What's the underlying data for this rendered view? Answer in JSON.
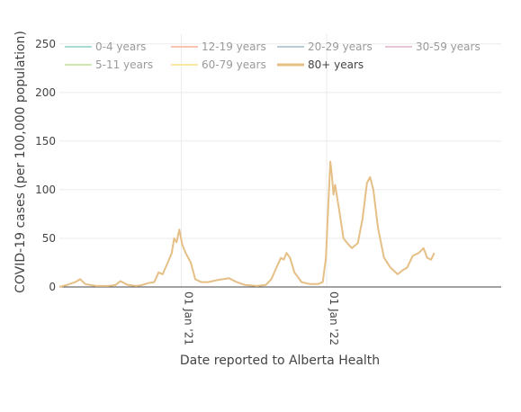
{
  "chart_data": {
    "type": "line",
    "title": "",
    "xlabel": "Date reported to Alberta Health",
    "ylabel": "COVID-19 cases (per 100,000 population)",
    "x_range": [
      "2020-03-01",
      "2023-03-15"
    ],
    "ylim": [
      0,
      260
    ],
    "y_ticks": [
      0,
      50,
      100,
      150,
      200,
      250
    ],
    "x_ticks": [
      {
        "value": "2021-01-01",
        "label": "01 Jan '21"
      },
      {
        "value": "2022-01-01",
        "label": "01 Jan '22"
      }
    ],
    "grid": true,
    "legend_position": "top",
    "legend": [
      {
        "label": "0-4 years",
        "color": "#a8dcd2",
        "active": false
      },
      {
        "label": "12-19 years",
        "color": "#f7c4b0",
        "active": false
      },
      {
        "label": "20-29 years",
        "color": "#b8ccd4",
        "active": false
      },
      {
        "label": "30-59 years",
        "color": "#e8c4d8",
        "active": false
      },
      {
        "label": "5-11 years",
        "color": "#cde8b0",
        "active": false
      },
      {
        "label": "60-79 years",
        "color": "#fbe7a1",
        "active": false
      },
      {
        "label": "80+ years",
        "color": "#e5bf85",
        "active": true
      }
    ],
    "series": [
      {
        "name": "80+ years",
        "color": "#e5bf85",
        "points": [
          [
            "2020-03-01",
            0
          ],
          [
            "2020-03-20",
            2
          ],
          [
            "2020-04-10",
            5
          ],
          [
            "2020-04-22",
            8
          ],
          [
            "2020-05-05",
            3
          ],
          [
            "2020-06-01",
            1
          ],
          [
            "2020-07-01",
            1
          ],
          [
            "2020-07-20",
            2
          ],
          [
            "2020-08-01",
            6
          ],
          [
            "2020-08-20",
            2
          ],
          [
            "2020-09-10",
            1
          ],
          [
            "2020-09-25",
            2
          ],
          [
            "2020-10-10",
            4
          ],
          [
            "2020-10-25",
            5
          ],
          [
            "2020-11-05",
            15
          ],
          [
            "2020-11-15",
            13
          ],
          [
            "2020-11-28",
            25
          ],
          [
            "2020-12-08",
            35
          ],
          [
            "2020-12-14",
            50
          ],
          [
            "2020-12-20",
            46
          ],
          [
            "2020-12-27",
            59
          ],
          [
            "2021-01-03",
            44
          ],
          [
            "2021-01-12",
            35
          ],
          [
            "2021-01-25",
            25
          ],
          [
            "2021-02-05",
            8
          ],
          [
            "2021-02-20",
            5
          ],
          [
            "2021-03-10",
            5
          ],
          [
            "2021-04-01",
            7
          ],
          [
            "2021-05-01",
            9
          ],
          [
            "2021-05-20",
            5
          ],
          [
            "2021-06-10",
            2
          ],
          [
            "2021-07-10",
            1
          ],
          [
            "2021-08-01",
            2
          ],
          [
            "2021-08-15",
            8
          ],
          [
            "2021-08-28",
            20
          ],
          [
            "2021-09-08",
            30
          ],
          [
            "2021-09-15",
            28
          ],
          [
            "2021-09-22",
            35
          ],
          [
            "2021-10-01",
            30
          ],
          [
            "2021-10-12",
            15
          ],
          [
            "2021-10-30",
            5
          ],
          [
            "2021-11-20",
            3
          ],
          [
            "2021-12-10",
            3
          ],
          [
            "2021-12-22",
            5
          ],
          [
            "2021-12-30",
            30
          ],
          [
            "2022-01-05",
            85
          ],
          [
            "2022-01-10",
            129
          ],
          [
            "2022-01-14",
            115
          ],
          [
            "2022-01-18",
            95
          ],
          [
            "2022-01-22",
            105
          ],
          [
            "2022-02-01",
            80
          ],
          [
            "2022-02-12",
            50
          ],
          [
            "2022-02-22",
            45
          ],
          [
            "2022-03-05",
            40
          ],
          [
            "2022-03-20",
            45
          ],
          [
            "2022-04-01",
            70
          ],
          [
            "2022-04-12",
            107
          ],
          [
            "2022-04-20",
            113
          ],
          [
            "2022-04-28",
            100
          ],
          [
            "2022-05-10",
            60
          ],
          [
            "2022-05-25",
            30
          ],
          [
            "2022-06-10",
            20
          ],
          [
            "2022-06-28",
            13
          ],
          [
            "2022-07-10",
            17
          ],
          [
            "2022-07-22",
            20
          ],
          [
            "2022-08-05",
            32
          ],
          [
            "2022-08-20",
            35
          ],
          [
            "2022-09-01",
            40
          ],
          [
            "2022-09-10",
            30
          ],
          [
            "2022-09-20",
            28
          ],
          [
            "2022-09-28",
            35
          ]
        ]
      }
    ]
  }
}
